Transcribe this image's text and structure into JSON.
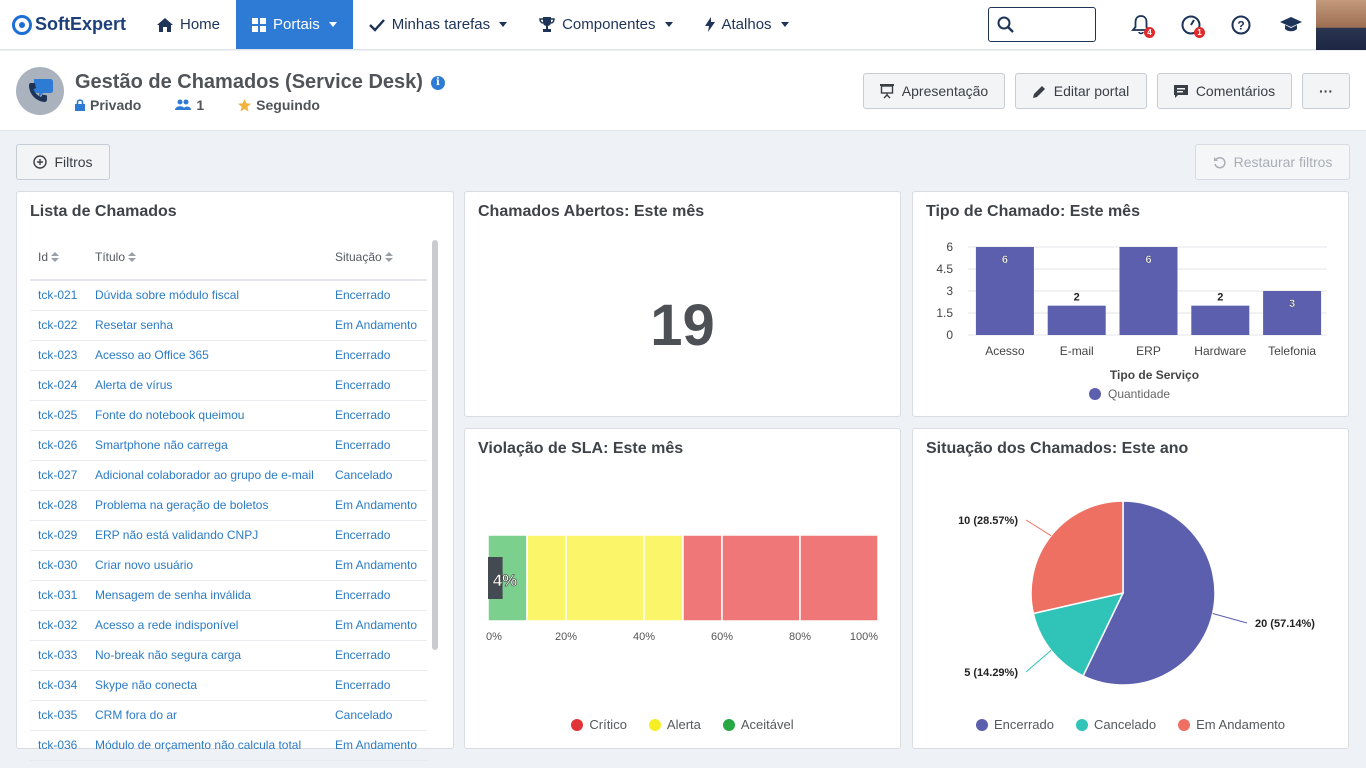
{
  "brand": {
    "name": "SoftExpert"
  },
  "nav": {
    "home": "Home",
    "portais": "Portais",
    "tarefas": "Minhas tarefas",
    "componentes": "Componentes",
    "atalhos": "Atalhos",
    "notifications_count": "4",
    "alerts_count": "1"
  },
  "header": {
    "title": "Gestão de Chamados (Service Desk)",
    "privacy": "Privado",
    "members": "1",
    "following": "Seguindo",
    "btn_presentation": "Apresentação",
    "btn_edit": "Editar portal",
    "btn_comments": "Comentários",
    "btn_more": "···"
  },
  "filters": {
    "label": "Filtros",
    "restore": "Restaurar filtros"
  },
  "list": {
    "title": "Lista de Chamados",
    "columns": [
      "Id",
      "Título",
      "Situação"
    ],
    "rows": [
      [
        "tck-021",
        "Dúvida sobre módulo fiscal",
        "Encerrado"
      ],
      [
        "tck-022",
        "Resetar senha",
        "Em Andamento"
      ],
      [
        "tck-023",
        "Acesso ao Office 365",
        "Encerrado"
      ],
      [
        "tck-024",
        "Alerta de vírus",
        "Encerrado"
      ],
      [
        "tck-025",
        "Fonte do notebook queimou",
        "Encerrado"
      ],
      [
        "tck-026",
        "Smartphone não carrega",
        "Encerrado"
      ],
      [
        "tck-027",
        "Adicional colaborador ao grupo de e-mail",
        "Cancelado"
      ],
      [
        "tck-028",
        "Problema na geração de boletos",
        "Em Andamento"
      ],
      [
        "tck-029",
        "ERP não está validando CNPJ",
        "Encerrado"
      ],
      [
        "tck-030",
        "Criar novo usuário",
        "Em Andamento"
      ],
      [
        "tck-031",
        "Mensagem de senha inválida",
        "Encerrado"
      ],
      [
        "tck-032",
        "Acesso a rede indisponível",
        "Em Andamento"
      ],
      [
        "tck-033",
        "No-break não segura carga",
        "Encerrado"
      ],
      [
        "tck-034",
        "Skype não conecta",
        "Encerrado"
      ],
      [
        "tck-035",
        "CRM fora do ar",
        "Cancelado"
      ],
      [
        "tck-036",
        "Módulo de orçamento não calcula total",
        "Em Andamento"
      ]
    ]
  },
  "open_calls": {
    "title": "Chamados Abertos: Este mês",
    "value": "19"
  },
  "sla": {
    "title": "Violação de SLA: Este mês"
  },
  "tipo": {
    "title": "Tipo de Chamado: Este mês"
  },
  "situacao": {
    "title": "Situação dos Chamados: Este ano"
  },
  "chart_data": [
    {
      "type": "bar",
      "title": "Tipo de Chamado: Este mês",
      "categories": [
        "Acesso",
        "E-mail",
        "ERP",
        "Hardware",
        "Telefonia"
      ],
      "values": [
        6,
        2,
        6,
        2,
        3
      ],
      "xlabel": "Tipo de Serviço",
      "ylabel": "",
      "ylim": [
        0,
        6
      ],
      "yticks": [
        "0",
        "1.5",
        "3",
        "4.5",
        "6"
      ],
      "series": [
        {
          "name": "Quantidade",
          "values": [
            6,
            2,
            6,
            2,
            3
          ]
        }
      ],
      "color": "#5b5fad",
      "grid": true,
      "legend": "bottom"
    },
    {
      "type": "bar",
      "title": "Violação de SLA: Este mês",
      "value_label": "4%",
      "value": 4,
      "bands": [
        {
          "name": "Aceitável",
          "from": 0,
          "to": 10,
          "color": "#7cd08e"
        },
        {
          "name": "Alerta",
          "from": 10,
          "to": 50,
          "color": "#fbf56a"
        },
        {
          "name": "Crítico",
          "from": 50,
          "to": 100,
          "color": "#f07777"
        }
      ],
      "xticks": [
        "0%",
        "20%",
        "40%",
        "60%",
        "80%",
        "100%"
      ],
      "xlim": [
        0,
        100
      ],
      "legend_items": [
        {
          "name": "Crítico",
          "color": "#e0343a"
        },
        {
          "name": "Alerta",
          "color": "#f6ee25"
        },
        {
          "name": "Aceitável",
          "color": "#27a845"
        }
      ],
      "legend": "bottom"
    },
    {
      "type": "pie",
      "title": "Situação dos Chamados: Este ano",
      "categories": [
        "Encerrado",
        "Cancelado",
        "Em Andamento"
      ],
      "values": [
        20,
        5,
        10
      ],
      "labels": [
        "20 (57.14%)",
        "5 (14.29%)",
        "10 (28.57%)"
      ],
      "colors": [
        "#5b5fad",
        "#2fc4b7",
        "#ee7062"
      ],
      "legend": "bottom"
    }
  ]
}
